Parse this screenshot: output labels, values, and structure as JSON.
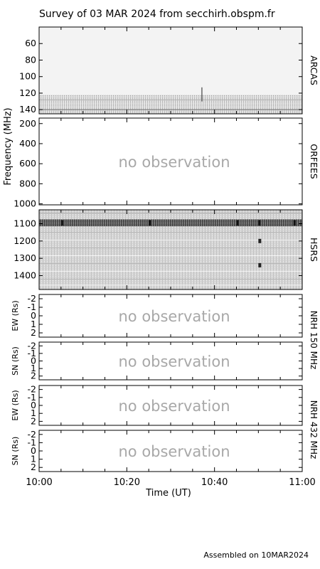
{
  "title": "Survey of 03 MAR 2024 from secchirh.obspm.fr",
  "footer": "Assembled on  10MAR2024",
  "chart_data": {
    "type": "heatmap",
    "xlabel": "Time (UT)",
    "x_ticks": [
      "10:00",
      "10:20",
      "10:40",
      "11:00"
    ],
    "freq_axis_label": "Frequency (MHz)",
    "no_obs_text": "no observation",
    "panels": [
      {
        "id": "arcas",
        "name": "ARCAS",
        "yticks": [
          "60",
          "80",
          "100",
          "120",
          "140"
        ],
        "ylim": [
          40,
          145
        ],
        "observed": true,
        "fill": "#f2f2f2",
        "features": [
          "faint noise band 120-145 MHz",
          "brief spike near 10:37 ~120 MHz"
        ]
      },
      {
        "id": "orfees",
        "name": "ORFEES",
        "yticks": [
          "200",
          "400",
          "600",
          "800",
          "1000"
        ],
        "ylim": [
          145,
          1010
        ],
        "observed": false
      },
      {
        "id": "hsrs",
        "name": "HSRS",
        "yticks": [
          "1100",
          "1200",
          "1300",
          "1400"
        ],
        "ylim": [
          1020,
          1480
        ],
        "observed": true,
        "fill": "#dcdcdc",
        "features": [
          "dark RFI band ~1080-1110 MHz",
          "short bursts near 10:05, 10:25, 10:45, 10:50, 10:58",
          "dark spot near 10:50 at ~1200 MHz and ~1340 MHz"
        ]
      },
      {
        "id": "nrh150ew",
        "ylabel": "EW (Rs)",
        "yticks": [
          "2",
          "1",
          "0",
          "-1",
          "-2"
        ],
        "ylim": [
          -2.5,
          2.5
        ],
        "observed": false
      },
      {
        "id": "nrh150sn",
        "ylabel": "SN (Rs)",
        "yticks": [
          "2",
          "1",
          "0",
          "-1",
          "-2"
        ],
        "ylim": [
          -2.5,
          2.5
        ],
        "observed": false
      },
      {
        "id": "nrh432ew",
        "ylabel": "EW (Rs)",
        "yticks": [
          "2",
          "1",
          "0",
          "-1",
          "-2"
        ],
        "ylim": [
          -2.5,
          2.5
        ],
        "observed": false
      },
      {
        "id": "nrh432sn",
        "ylabel": "SN (Rs)",
        "yticks": [
          "2",
          "1",
          "0",
          "-1",
          "-2"
        ],
        "ylim": [
          -2.5,
          2.5
        ],
        "observed": false
      }
    ],
    "nrh_labels": [
      "NRH 150 MHz",
      "NRH 432 MHz"
    ]
  }
}
